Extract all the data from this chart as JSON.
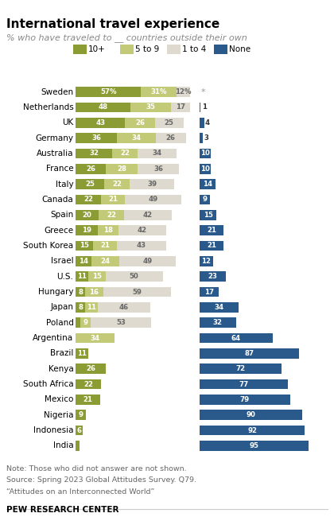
{
  "title": "International travel experience",
  "subtitle": "% who have traveled to __ countries outside their own",
  "countries": [
    "Sweden",
    "Netherlands",
    "UK",
    "Germany",
    "Australia",
    "France",
    "Italy",
    "Canada",
    "Spain",
    "Greece",
    "South Korea",
    "Israel",
    "U.S.",
    "Hungary",
    "Japan",
    "Poland",
    "Argentina",
    "Brazil",
    "Kenya",
    "South Africa",
    "Mexico",
    "Nigeria",
    "Indonesia",
    "India"
  ],
  "ten_plus": [
    57,
    48,
    43,
    36,
    32,
    26,
    25,
    22,
    20,
    19,
    15,
    14,
    11,
    8,
    8,
    4,
    0,
    11,
    26,
    22,
    21,
    9,
    6,
    3
  ],
  "five_to_nine": [
    31,
    35,
    26,
    34,
    22,
    28,
    22,
    21,
    22,
    18,
    21,
    24,
    15,
    16,
    11,
    9,
    34,
    0,
    0,
    0,
    0,
    0,
    0,
    0
  ],
  "one_to_four": [
    12,
    17,
    25,
    26,
    34,
    36,
    39,
    49,
    42,
    42,
    43,
    49,
    50,
    59,
    46,
    53,
    0,
    0,
    0,
    0,
    0,
    0,
    0,
    0
  ],
  "none": [
    0,
    1,
    4,
    3,
    10,
    10,
    14,
    9,
    15,
    21,
    21,
    12,
    23,
    17,
    34,
    32,
    64,
    87,
    72,
    77,
    79,
    90,
    92,
    95
  ],
  "sweden_none_label": "*",
  "color_10plus": "#8b9c35",
  "color_5to9": "#c3ca77",
  "color_1to4": "#dedad0",
  "color_none": "#2a5a8c",
  "note_line1": "Note: Those who did not answer are not shown.",
  "note_line2": "Source: Spring 2023 Global Attitudes Survey. Q79.",
  "note_line3": "“Attitudes on an Interconnected World”",
  "footer": "PEW RESEARCH CENTER",
  "legend_items": [
    "10+",
    "5 to 9",
    "1 to 4",
    "None"
  ]
}
